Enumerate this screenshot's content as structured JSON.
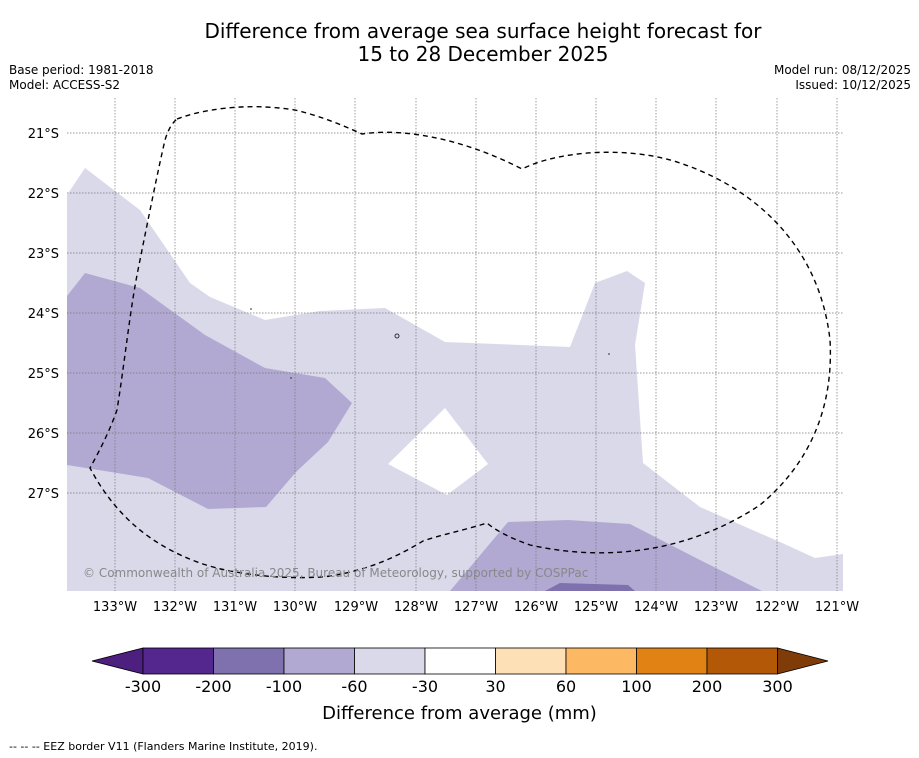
{
  "title_line1": "Difference from average sea surface height forecast for",
  "title_line2": "15 to 28 December 2025",
  "base_period": "Base period: 1981-2018",
  "model": "Model: ACCESS-S2",
  "model_run": "Model run: 08/12/2025",
  "issued": "Issued: 10/12/2025",
  "copyright": "© Commonwealth of Australia 2025, Bureau of Meteorology, supported by COSPPac",
  "lat_labels": [
    "21°S",
    "22°S",
    "23°S",
    "24°S",
    "25°S",
    "26°S",
    "27°S"
  ],
  "lon_labels": [
    "133°W",
    "132°W",
    "131°W",
    "130°W",
    "129°W",
    "128°W",
    "127°W",
    "126°W",
    "125°W",
    "124°W",
    "123°W",
    "122°W",
    "121°W"
  ],
  "colorbar": {
    "title": "Difference from average (mm)",
    "tick_labels": [
      "-300",
      "-200",
      "-100",
      "-60",
      "-30",
      "30",
      "60",
      "100",
      "200",
      "300"
    ],
    "colors": [
      "#4d1f7f",
      "#54278f",
      "#7f71ad",
      "#b1a9d2",
      "#d9d9ea",
      "#ffffff",
      "#fee0b6",
      "#fdb863",
      "#e08214",
      "#b35806",
      "#7f3b08"
    ]
  },
  "footnote": "--  --  -- EEZ border V11 (Flanders Marine Institute, 2019).",
  "colors": {
    "light_purple": "#d9d9ea",
    "mid_purple": "#b1a9d2",
    "dark_purple": "#7f71ad"
  }
}
